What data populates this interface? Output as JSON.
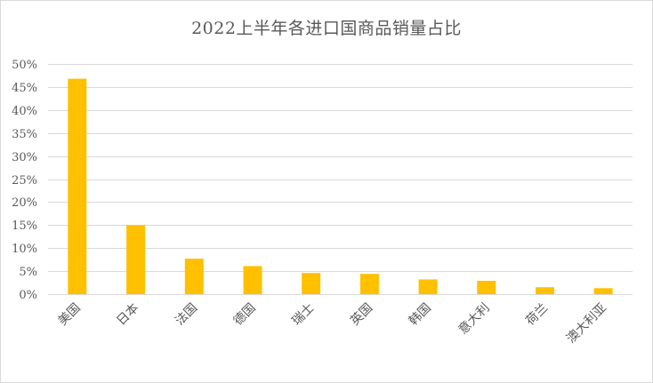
{
  "chart_data": {
    "type": "bar",
    "title": "2022上半年各进口国商品销量占比",
    "categories": [
      "美国",
      "日本",
      "法国",
      "德国",
      "瑞士",
      "英国",
      "韩国",
      "意大利",
      "荷兰",
      "澳大利亚"
    ],
    "values": [
      46.8,
      15.0,
      7.7,
      6.1,
      4.6,
      4.4,
      3.2,
      2.9,
      1.5,
      1.3
    ],
    "y_ticks": [
      "0%",
      "5%",
      "10%",
      "15%",
      "20%",
      "25%",
      "30%",
      "35%",
      "40%",
      "45%",
      "50%"
    ],
    "ylim": [
      0,
      50
    ],
    "unit": "%",
    "grid": true,
    "legend": "none",
    "bar_color": "#FFC000",
    "grid_color": "#D9D9D9",
    "axis_color": "#D9D9D9",
    "text_color": "#595959"
  }
}
